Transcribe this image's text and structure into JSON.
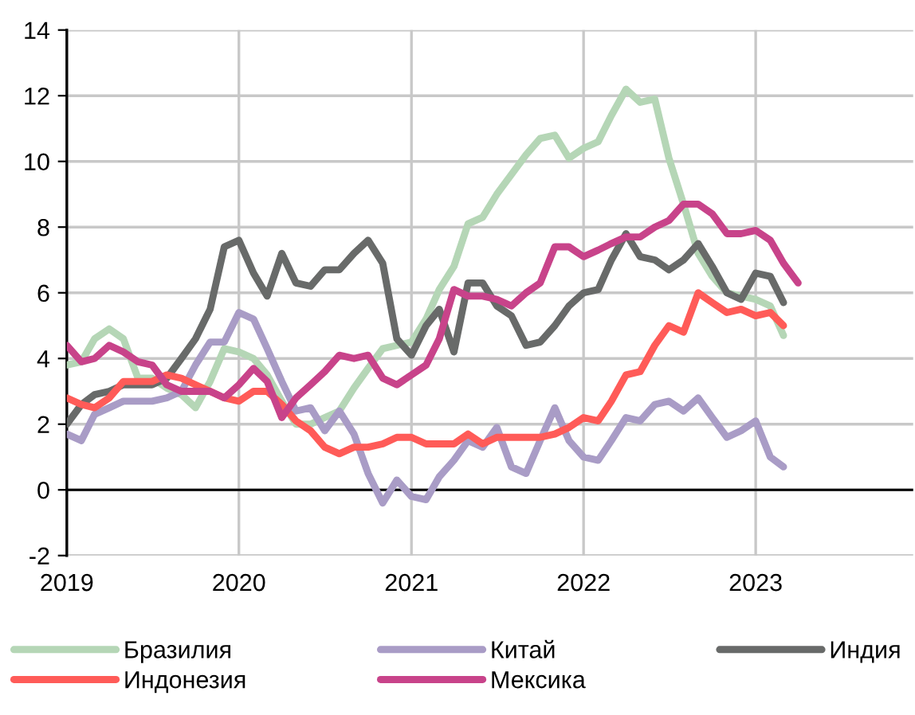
{
  "chart_data": {
    "type": "line",
    "x": [
      "2019-01",
      "2019-02",
      "2019-03",
      "2019-04",
      "2019-05",
      "2019-06",
      "2019-07",
      "2019-08",
      "2019-09",
      "2019-10",
      "2019-11",
      "2019-12",
      "2020-01",
      "2020-02",
      "2020-03",
      "2020-04",
      "2020-05",
      "2020-06",
      "2020-07",
      "2020-08",
      "2020-09",
      "2020-10",
      "2020-11",
      "2020-12",
      "2021-01",
      "2021-02",
      "2021-03",
      "2021-04",
      "2021-05",
      "2021-06",
      "2021-07",
      "2021-08",
      "2021-09",
      "2021-10",
      "2021-11",
      "2021-12",
      "2022-01",
      "2022-02",
      "2022-03",
      "2022-04",
      "2022-05",
      "2022-06",
      "2022-07",
      "2022-08",
      "2022-09",
      "2022-10",
      "2022-11",
      "2022-12",
      "2023-01",
      "2023-02",
      "2023-03",
      "2023-04"
    ],
    "series": [
      {
        "name": "Бразилия",
        "color": "#b5d6b6",
        "values": [
          3.8,
          3.9,
          4.6,
          4.9,
          4.6,
          3.4,
          3.4,
          3.1,
          2.9,
          2.5,
          3.3,
          4.3,
          4.2,
          4.0,
          3.5,
          2.7,
          2.0,
          2.0,
          2.2,
          2.4,
          3.1,
          3.7,
          4.3,
          4.4,
          4.5,
          5.2,
          6.1,
          6.8,
          8.1,
          8.3,
          9.0,
          9.6,
          10.2,
          10.7,
          10.8,
          10.1,
          10.4,
          10.6,
          11.4,
          12.2,
          11.8,
          11.9,
          10.1,
          8.7,
          7.2,
          6.5,
          6.0,
          5.9,
          5.8,
          5.6,
          4.7,
          null
        ]
      },
      {
        "name": "Китай",
        "color": "#a99cc6",
        "values": [
          1.7,
          1.5,
          2.3,
          2.5,
          2.7,
          2.7,
          2.7,
          2.8,
          3.0,
          3.8,
          4.5,
          4.5,
          5.4,
          5.2,
          4.3,
          3.3,
          2.4,
          2.5,
          1.8,
          2.4,
          1.7,
          0.5,
          -0.4,
          0.3,
          -0.2,
          -0.3,
          0.4,
          0.9,
          1.5,
          1.3,
          1.9,
          0.7,
          0.5,
          1.5,
          2.5,
          1.5,
          1.0,
          0.9,
          1.5,
          2.2,
          2.1,
          2.6,
          2.7,
          2.4,
          2.8,
          2.2,
          1.6,
          1.8,
          2.1,
          1.0,
          0.7,
          null
        ]
      },
      {
        "name": "Индия",
        "color": "#686a69",
        "values": [
          2.0,
          2.6,
          2.9,
          3.0,
          3.2,
          3.2,
          3.2,
          3.4,
          4.0,
          4.6,
          5.5,
          7.4,
          7.6,
          6.6,
          5.9,
          7.2,
          6.3,
          6.2,
          6.7,
          6.7,
          7.2,
          7.6,
          6.9,
          4.6,
          4.1,
          5.0,
          5.5,
          4.2,
          6.3,
          6.3,
          5.6,
          5.3,
          4.4,
          4.5,
          5.0,
          5.6,
          6.0,
          6.1,
          7.0,
          7.8,
          7.1,
          7.0,
          6.7,
          7.0,
          7.5,
          6.8,
          6.0,
          5.8,
          6.6,
          6.5,
          5.7,
          null
        ]
      },
      {
        "name": "Индонезия",
        "color": "#ff5b58",
        "values": [
          2.8,
          2.6,
          2.5,
          2.8,
          3.3,
          3.3,
          3.3,
          3.5,
          3.4,
          3.2,
          3.0,
          2.8,
          2.7,
          3.0,
          3.0,
          2.6,
          2.1,
          1.8,
          1.3,
          1.1,
          1.3,
          1.3,
          1.4,
          1.6,
          1.6,
          1.4,
          1.4,
          1.4,
          1.7,
          1.4,
          1.6,
          1.6,
          1.6,
          1.6,
          1.7,
          1.9,
          2.2,
          2.1,
          2.7,
          3.5,
          3.6,
          4.4,
          5.0,
          4.8,
          6.0,
          5.7,
          5.4,
          5.5,
          5.3,
          5.4,
          5.0,
          null
        ]
      },
      {
        "name": "Мексика",
        "color": "#c8438a",
        "values": [
          4.4,
          3.9,
          4.0,
          4.4,
          4.2,
          3.9,
          3.8,
          3.2,
          3.0,
          3.0,
          3.0,
          2.8,
          3.2,
          3.7,
          3.3,
          2.2,
          2.8,
          3.2,
          3.6,
          4.1,
          4.0,
          4.1,
          3.4,
          3.2,
          3.5,
          3.8,
          4.6,
          6.1,
          5.9,
          5.9,
          5.8,
          5.6,
          6.0,
          6.3,
          7.4,
          7.4,
          7.1,
          7.3,
          7.5,
          7.7,
          7.7,
          8.0,
          8.2,
          8.7,
          8.7,
          8.4,
          7.8,
          7.8,
          7.9,
          7.6,
          6.9,
          6.3
        ]
      }
    ],
    "xlim": [
      "2019-01",
      "2023-12"
    ],
    "xticks": [
      {
        "value": "2019-01",
        "label": "2019"
      },
      {
        "value": "2020-01",
        "label": "2020"
      },
      {
        "value": "2021-01",
        "label": "2021"
      },
      {
        "value": "2022-01",
        "label": "2022"
      },
      {
        "value": "2023-01",
        "label": "2023"
      }
    ],
    "ylim": [
      -2,
      14
    ],
    "yticks": [
      -2,
      0,
      2,
      4,
      6,
      8,
      10,
      12,
      14
    ],
    "ref_lines": [
      {
        "axis": "y",
        "value": 0,
        "color": "#000000"
      }
    ],
    "grid": true,
    "legend": "bottom",
    "marker": "none",
    "line_style": "solid"
  }
}
